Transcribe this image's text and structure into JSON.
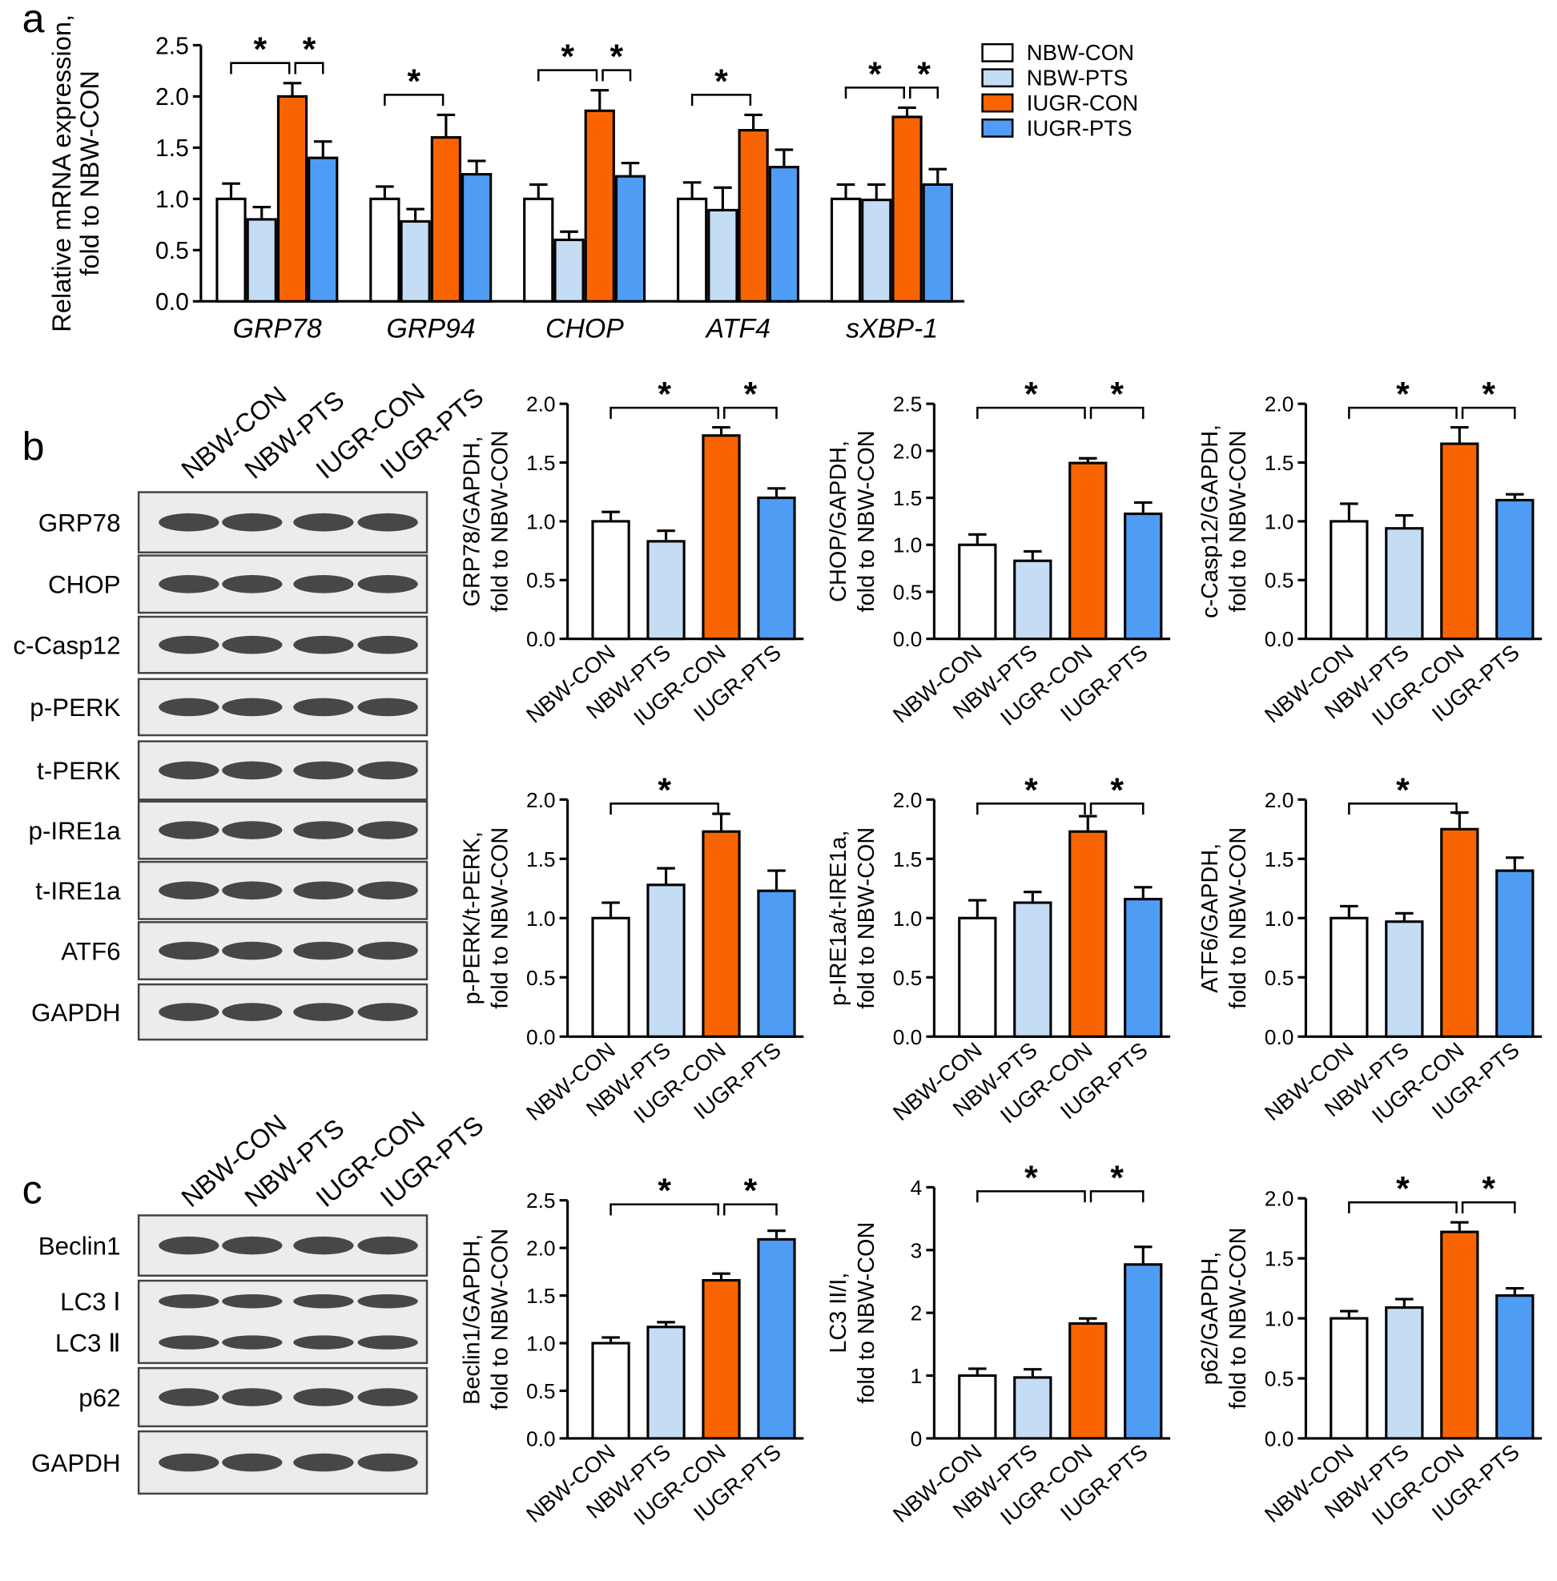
{
  "panel_labels": [
    "a",
    "b",
    "c"
  ],
  "blots": [
    {
      "lanes": [
        "NBW-CON",
        "NBW-PTS",
        "IUGR-CON",
        "IUGR-PTS"
      ],
      "rows": [
        {
          "labels": [
            "GRP78"
          ]
        },
        {
          "labels": [
            "CHOP"
          ]
        },
        {
          "labels": [
            "c-Casp12"
          ]
        },
        {
          "labels": [
            "p-PERK"
          ]
        },
        {
          "labels": [
            "t-PERK"
          ]
        },
        {
          "labels": [
            "p-IRE1a"
          ]
        },
        {
          "labels": [
            "t-IRE1a"
          ]
        },
        {
          "labels": [
            "ATF6"
          ]
        },
        {
          "labels": [
            "GAPDH"
          ]
        }
      ]
    },
    {
      "lanes": [
        "NBW-CON",
        "NBW-PTS",
        "IUGR-CON",
        "IUGR-PTS"
      ],
      "rows": [
        {
          "labels": [
            "Beclin1"
          ]
        },
        {
          "labels": [
            "LC3 Ⅰ",
            "LC3 Ⅱ"
          ]
        },
        {
          "labels": [
            "p62"
          ]
        },
        {
          "labels": [
            "GAPDH"
          ]
        }
      ]
    }
  ],
  "chart_data": [
    {
      "type": "grouped_bar",
      "ylabel": [
        "Relative mRNA expression,",
        "fold to NBW-CON"
      ],
      "categories": [
        "GRP78",
        "GRP94",
        "CHOP",
        "ATF4",
        "sXBP-1"
      ],
      "series": [
        {
          "name": "NBW-CON",
          "color": "#ffffff",
          "values": [
            1.0,
            1.0,
            1.0,
            1.0,
            1.0
          ],
          "errors": [
            0.15,
            0.12,
            0.14,
            0.16,
            0.14
          ]
        },
        {
          "name": "NBW-PTS",
          "color": "#c5dcf5",
          "values": [
            0.8,
            0.78,
            0.6,
            0.89,
            0.99
          ],
          "errors": [
            0.12,
            0.12,
            0.08,
            0.22,
            0.15
          ]
        },
        {
          "name": "IUGR-CON",
          "color": "#fa6400",
          "values": [
            2.0,
            1.6,
            1.86,
            1.67,
            1.8
          ],
          "errors": [
            0.13,
            0.22,
            0.2,
            0.15,
            0.09
          ]
        },
        {
          "name": "IUGR-PTS",
          "color": "#4f9cf5",
          "values": [
            1.4,
            1.24,
            1.22,
            1.31,
            1.14
          ],
          "errors": [
            0.16,
            0.13,
            0.13,
            0.17,
            0.15
          ]
        }
      ],
      "significance": [
        {
          "category": 0,
          "groups": [
            0,
            2
          ],
          "label": "*"
        },
        {
          "category": 0,
          "groups": [
            2,
            3
          ],
          "label": "*"
        },
        {
          "category": 1,
          "groups": [
            0,
            2
          ],
          "label": "*"
        },
        {
          "category": 2,
          "groups": [
            0,
            2
          ],
          "label": "*"
        },
        {
          "category": 2,
          "groups": [
            2,
            3
          ],
          "label": "*"
        },
        {
          "category": 3,
          "groups": [
            0,
            2
          ],
          "label": "*"
        },
        {
          "category": 4,
          "groups": [
            0,
            2
          ],
          "label": "*"
        },
        {
          "category": 4,
          "groups": [
            2,
            3
          ],
          "label": "*"
        }
      ],
      "ylim": [
        0,
        2.5
      ],
      "yticks": [
        {
          "value": 0,
          "label": "0.0"
        },
        0.5,
        {
          "value": 1,
          "label": "1.0"
        },
        1.5,
        {
          "value": 2,
          "label": "2.0"
        },
        2.5
      ]
    },
    {
      "type": "bar",
      "ylabel": [
        "GRP78/GAPDH,",
        "fold to NBW-CON"
      ],
      "categories": [
        "NBW-CON",
        "NBW-PTS",
        "IUGR-CON",
        "IUGR-PTS"
      ],
      "colors": [
        "#ffffff",
        "#c5dcf5",
        "#fa6400",
        "#4f9cf5"
      ],
      "values": [
        1.0,
        0.83,
        1.73,
        1.2
      ],
      "errors": [
        0.08,
        0.09,
        0.07,
        0.08
      ],
      "significance": [
        {
          "groups": [
            0,
            2
          ],
          "label": "*"
        },
        {
          "groups": [
            2,
            3
          ],
          "label": "*"
        }
      ],
      "ylim": [
        0,
        2
      ],
      "yticks": [
        {
          "value": 0,
          "label": "0.0"
        },
        0.5,
        {
          "value": 1,
          "label": "1.0"
        },
        1.5,
        {
          "value": 2,
          "label": "2.0"
        }
      ]
    },
    {
      "type": "bar",
      "ylabel": [
        "CHOP/GAPDH,",
        "fold to NBW-CON"
      ],
      "categories": [
        "NBW-CON",
        "NBW-PTS",
        "IUGR-CON",
        "IUGR-PTS"
      ],
      "colors": [
        "#ffffff",
        "#c5dcf5",
        "#fa6400",
        "#4f9cf5"
      ],
      "values": [
        1.0,
        0.83,
        1.87,
        1.33
      ],
      "errors": [
        0.11,
        0.1,
        0.05,
        0.12
      ],
      "significance": [
        {
          "groups": [
            0,
            2
          ],
          "label": "*"
        },
        {
          "groups": [
            2,
            3
          ],
          "label": "*"
        }
      ],
      "ylim": [
        0,
        2.5
      ],
      "yticks": [
        {
          "value": 0,
          "label": "0.0"
        },
        0.5,
        {
          "value": 1,
          "label": "1.0"
        },
        1.5,
        {
          "value": 2,
          "label": "2.0"
        },
        2.5
      ]
    },
    {
      "type": "bar",
      "ylabel": [
        "c-Casp12/GAPDH,",
        "fold to NBW-CON"
      ],
      "categories": [
        "NBW-CON",
        "NBW-PTS",
        "IUGR-CON",
        "IUGR-PTS"
      ],
      "colors": [
        "#ffffff",
        "#c5dcf5",
        "#fa6400",
        "#4f9cf5"
      ],
      "values": [
        1.0,
        0.94,
        1.66,
        1.18
      ],
      "errors": [
        0.15,
        0.11,
        0.14,
        0.05
      ],
      "significance": [
        {
          "groups": [
            0,
            2
          ],
          "label": "*"
        },
        {
          "groups": [
            2,
            3
          ],
          "label": "*"
        }
      ],
      "ylim": [
        0,
        2
      ],
      "yticks": [
        {
          "value": 0,
          "label": "0.0"
        },
        0.5,
        {
          "value": 1,
          "label": "1.0"
        },
        1.5,
        {
          "value": 2,
          "label": "2.0"
        }
      ]
    },
    {
      "type": "bar",
      "ylabel": [
        "p-PERK/t-PERK,",
        "fold to NBW-CON"
      ],
      "categories": [
        "NBW-CON",
        "NBW-PTS",
        "IUGR-CON",
        "IUGR-PTS"
      ],
      "colors": [
        "#ffffff",
        "#c5dcf5",
        "#fa6400",
        "#4f9cf5"
      ],
      "values": [
        1.0,
        1.28,
        1.73,
        1.23
      ],
      "errors": [
        0.13,
        0.14,
        0.15,
        0.17
      ],
      "significance": [
        {
          "groups": [
            0,
            2
          ],
          "label": "*"
        }
      ],
      "ylim": [
        0,
        2
      ],
      "yticks": [
        {
          "value": 0,
          "label": "0.0"
        },
        0.5,
        {
          "value": 1,
          "label": "1.0"
        },
        1.5,
        {
          "value": 2,
          "label": "2.0"
        }
      ]
    },
    {
      "type": "bar",
      "ylabel": [
        "p-IRE1a/t-IRE1a,",
        "fold to NBW-CON"
      ],
      "categories": [
        "NBW-CON",
        "NBW-PTS",
        "IUGR-CON",
        "IUGR-PTS"
      ],
      "colors": [
        "#ffffff",
        "#c5dcf5",
        "#fa6400",
        "#4f9cf5"
      ],
      "values": [
        1.0,
        1.13,
        1.73,
        1.16
      ],
      "errors": [
        0.15,
        0.09,
        0.13,
        0.1
      ],
      "significance": [
        {
          "groups": [
            0,
            2
          ],
          "label": "*"
        },
        {
          "groups": [
            2,
            3
          ],
          "label": "*"
        }
      ],
      "ylim": [
        0,
        2
      ],
      "yticks": [
        {
          "value": 0,
          "label": "0.0"
        },
        0.5,
        {
          "value": 1,
          "label": "1.0"
        },
        1.5,
        {
          "value": 2,
          "label": "2.0"
        }
      ]
    },
    {
      "type": "bar",
      "ylabel": [
        "ATF6/GAPDH,",
        "fold to NBW-CON"
      ],
      "categories": [
        "NBW-CON",
        "NBW-PTS",
        "IUGR-CON",
        "IUGR-PTS"
      ],
      "colors": [
        "#ffffff",
        "#c5dcf5",
        "#fa6400",
        "#4f9cf5"
      ],
      "values": [
        1.0,
        0.97,
        1.75,
        1.4
      ],
      "errors": [
        0.1,
        0.07,
        0.14,
        0.11
      ],
      "significance": [
        {
          "groups": [
            0,
            2
          ],
          "label": "*"
        }
      ],
      "ylim": [
        0,
        2
      ],
      "yticks": [
        {
          "value": 0,
          "label": "0.0"
        },
        0.5,
        {
          "value": 1,
          "label": "1.0"
        },
        1.5,
        {
          "value": 2,
          "label": "2.0"
        }
      ]
    },
    {
      "type": "bar",
      "ylabel": [
        "Beclin1/GAPDH,",
        "fold to NBW-CON"
      ],
      "categories": [
        "NBW-CON",
        "NBW-PTS",
        "IUGR-CON",
        "IUGR-PTS"
      ],
      "colors": [
        "#ffffff",
        "#c5dcf5",
        "#fa6400",
        "#4f9cf5"
      ],
      "values": [
        1.0,
        1.17,
        1.66,
        2.09
      ],
      "errors": [
        0.06,
        0.05,
        0.07,
        0.09
      ],
      "significance": [
        {
          "groups": [
            0,
            2
          ],
          "label": "*"
        },
        {
          "groups": [
            2,
            3
          ],
          "label": "*"
        }
      ],
      "ylim": [
        0,
        2.5
      ],
      "yticks": [
        {
          "value": 0,
          "label": "0.0"
        },
        0.5,
        {
          "value": 1,
          "label": "1.0"
        },
        1.5,
        {
          "value": 2,
          "label": "2.0"
        },
        2.5
      ]
    },
    {
      "type": "bar",
      "ylabel": [
        "LC3 II/I,",
        "fold to NBW-CON"
      ],
      "categories": [
        "NBW-CON",
        "NBW-PTS",
        "IUGR-CON",
        "IUGR-PTS"
      ],
      "colors": [
        "#ffffff",
        "#c5dcf5",
        "#fa6400",
        "#4f9cf5"
      ],
      "values": [
        1.0,
        0.97,
        1.83,
        2.77
      ],
      "errors": [
        0.11,
        0.13,
        0.08,
        0.28
      ],
      "significance": [
        {
          "groups": [
            0,
            2
          ],
          "label": "*"
        },
        {
          "groups": [
            2,
            3
          ],
          "label": "*"
        }
      ],
      "ylim": [
        0,
        4
      ],
      "yticks": [
        0,
        1,
        2,
        3,
        4
      ]
    },
    {
      "type": "bar",
      "ylabel": [
        "p62/GAPDH,",
        "fold to NBW-CON"
      ],
      "categories": [
        "NBW-CON",
        "NBW-PTS",
        "IUGR-CON",
        "IUGR-PTS"
      ],
      "colors": [
        "#ffffff",
        "#c5dcf5",
        "#fa6400",
        "#4f9cf5"
      ],
      "values": [
        1.0,
        1.09,
        1.72,
        1.19
      ],
      "errors": [
        0.06,
        0.07,
        0.08,
        0.06
      ],
      "significance": [
        {
          "groups": [
            0,
            2
          ],
          "label": "*"
        },
        {
          "groups": [
            2,
            3
          ],
          "label": "*"
        }
      ],
      "ylim": [
        0,
        2
      ],
      "yticks": [
        {
          "value": 0,
          "label": "0.0"
        },
        0.5,
        {
          "value": 1,
          "label": "1.0"
        },
        1.5,
        {
          "value": 2,
          "label": "2.0"
        }
      ]
    }
  ]
}
